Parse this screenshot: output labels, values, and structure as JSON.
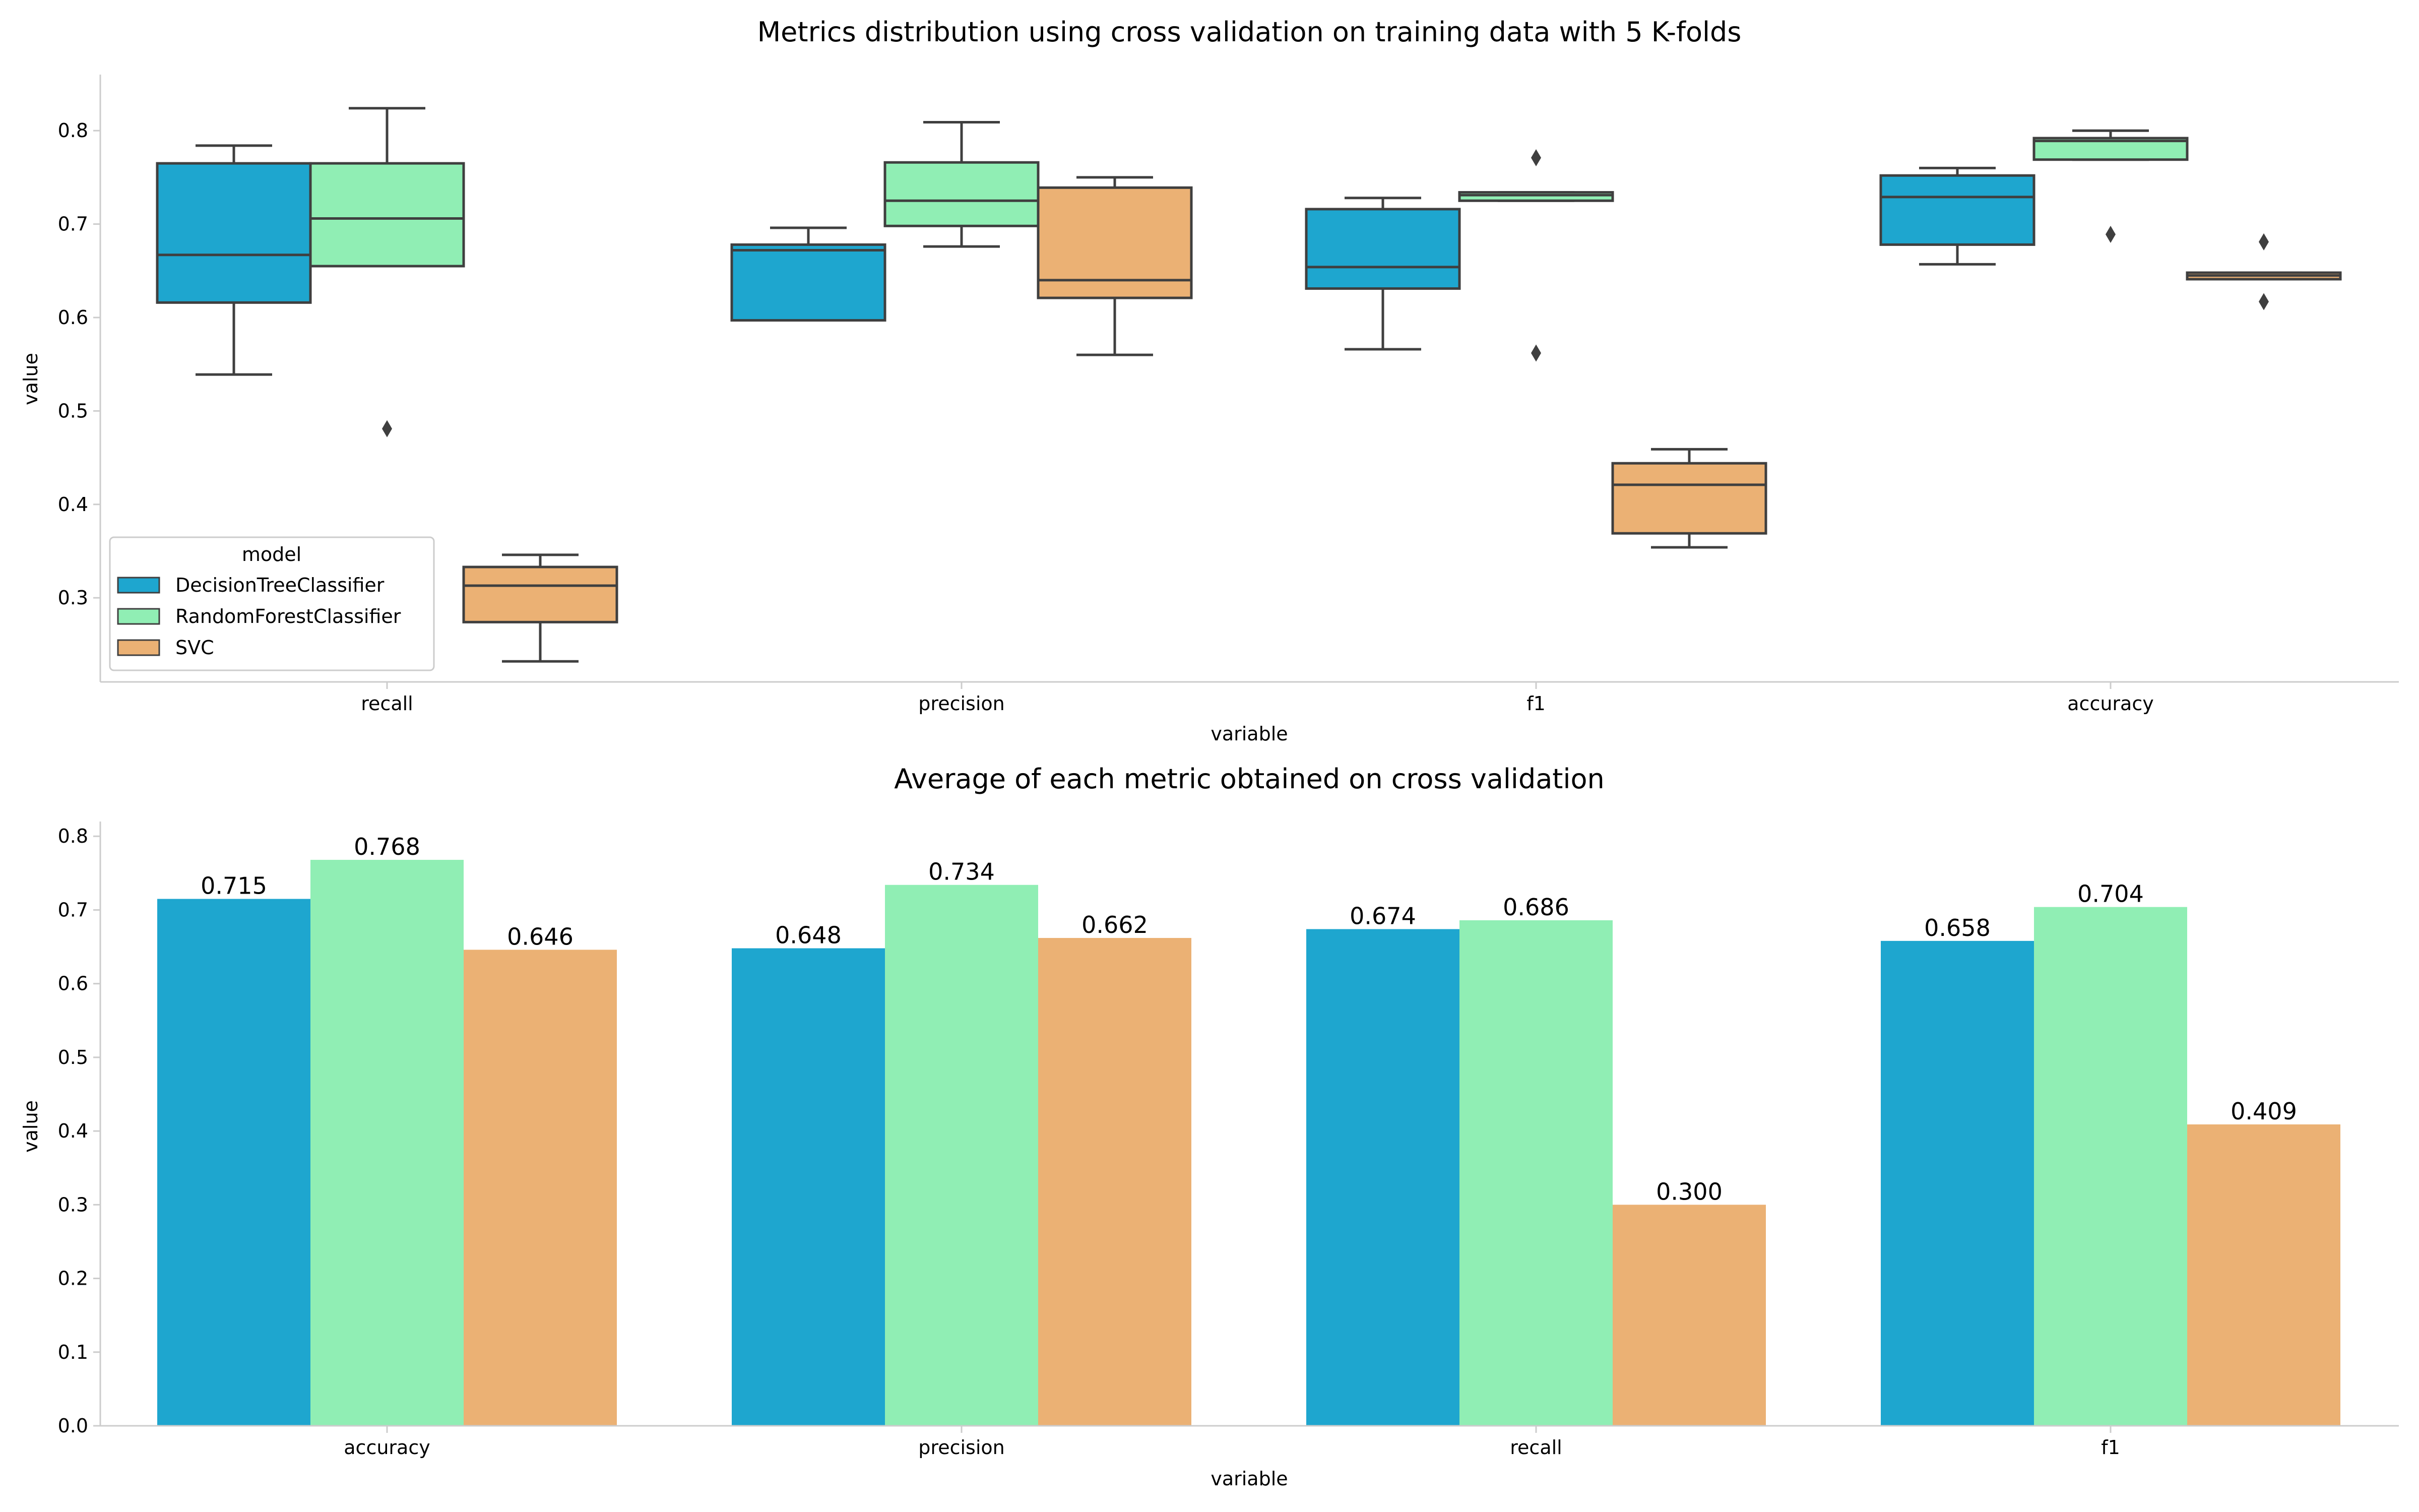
{
  "chart_data": [
    {
      "type": "box",
      "title": "Metrics distribution using cross validation on training data with 5 K-folds",
      "xlabel": "variable",
      "ylabel": "value",
      "ylim": [
        0.21,
        0.86
      ],
      "yticks": [
        "0.3",
        "0.4",
        "0.5",
        "0.6",
        "0.7",
        "0.8"
      ],
      "categories": [
        "recall",
        "precision",
        "f1",
        "accuracy"
      ],
      "legend": {
        "title": "model",
        "position": "lower-left",
        "entries": [
          "DecisionTreeClassifier",
          "RandomForestClassifier",
          "SVC"
        ]
      },
      "series": [
        {
          "name": "DecisionTreeClassifier",
          "color": "#1ea6cf",
          "boxes": [
            {
              "whisker_low": 0.539,
              "q1": 0.616,
              "median": 0.667,
              "q3": 0.765,
              "whisker_high": 0.784,
              "outliers": []
            },
            {
              "whisker_low": 0.597,
              "q1": 0.597,
              "median": 0.672,
              "q3": 0.678,
              "whisker_high": 0.696,
              "outliers": []
            },
            {
              "whisker_low": 0.566,
              "q1": 0.631,
              "median": 0.654,
              "q3": 0.716,
              "whisker_high": 0.728,
              "outliers": []
            },
            {
              "whisker_low": 0.657,
              "q1": 0.678,
              "median": 0.729,
              "q3": 0.752,
              "whisker_high": 0.76,
              "outliers": []
            }
          ]
        },
        {
          "name": "RandomForestClassifier",
          "color": "#90eeb4",
          "boxes": [
            {
              "whisker_low": 0.655,
              "q1": 0.655,
              "median": 0.706,
              "q3": 0.765,
              "whisker_high": 0.824,
              "outliers": [
                0.481
              ]
            },
            {
              "whisker_low": 0.676,
              "q1": 0.698,
              "median": 0.725,
              "q3": 0.766,
              "whisker_high": 0.809,
              "outliers": []
            },
            {
              "whisker_low": 0.725,
              "q1": 0.725,
              "median": 0.731,
              "q3": 0.734,
              "whisker_high": 0.734,
              "outliers": [
                0.771,
                0.562
              ]
            },
            {
              "whisker_low": 0.769,
              "q1": 0.769,
              "median": 0.789,
              "q3": 0.792,
              "whisker_high": 0.8,
              "outliers": [
                0.689
              ]
            }
          ]
        },
        {
          "name": "SVC",
          "color": "#ebb174",
          "boxes": [
            {
              "whisker_low": 0.232,
              "q1": 0.274,
              "median": 0.313,
              "q3": 0.333,
              "whisker_high": 0.346,
              "outliers": []
            },
            {
              "whisker_low": 0.56,
              "q1": 0.621,
              "median": 0.64,
              "q3": 0.739,
              "whisker_high": 0.75,
              "outliers": []
            },
            {
              "whisker_low": 0.354,
              "q1": 0.369,
              "median": 0.421,
              "q3": 0.444,
              "whisker_high": 0.459,
              "outliers": []
            },
            {
              "whisker_low": 0.641,
              "q1": 0.641,
              "median": 0.645,
              "q3": 0.648,
              "whisker_high": 0.648,
              "outliers": [
                0.681,
                0.617
              ]
            }
          ]
        }
      ]
    },
    {
      "type": "bar",
      "title": "Average of each metric obtained on cross validation",
      "xlabel": "variable",
      "ylabel": "value",
      "ylim": [
        0,
        0.82
      ],
      "yticks": [
        "0.0",
        "0.1",
        "0.2",
        "0.3",
        "0.4",
        "0.5",
        "0.6",
        "0.7",
        "0.8"
      ],
      "categories": [
        "accuracy",
        "precision",
        "recall",
        "f1"
      ],
      "series": [
        {
          "name": "DecisionTreeClassifier",
          "color": "#1ea6cf",
          "values": [
            0.715,
            0.648,
            0.674,
            0.658
          ],
          "labels": [
            "0.715",
            "0.648",
            "0.674",
            "0.658"
          ]
        },
        {
          "name": "RandomForestClassifier",
          "color": "#90eeb4",
          "values": [
            0.768,
            0.734,
            0.686,
            0.704
          ],
          "labels": [
            "0.768",
            "0.734",
            "0.686",
            "0.704"
          ]
        },
        {
          "name": "SVC",
          "color": "#ebb174",
          "values": [
            0.646,
            0.662,
            0.3,
            0.409
          ],
          "labels": [
            "0.646",
            "0.662",
            "0.300",
            "0.409"
          ]
        }
      ]
    }
  ]
}
